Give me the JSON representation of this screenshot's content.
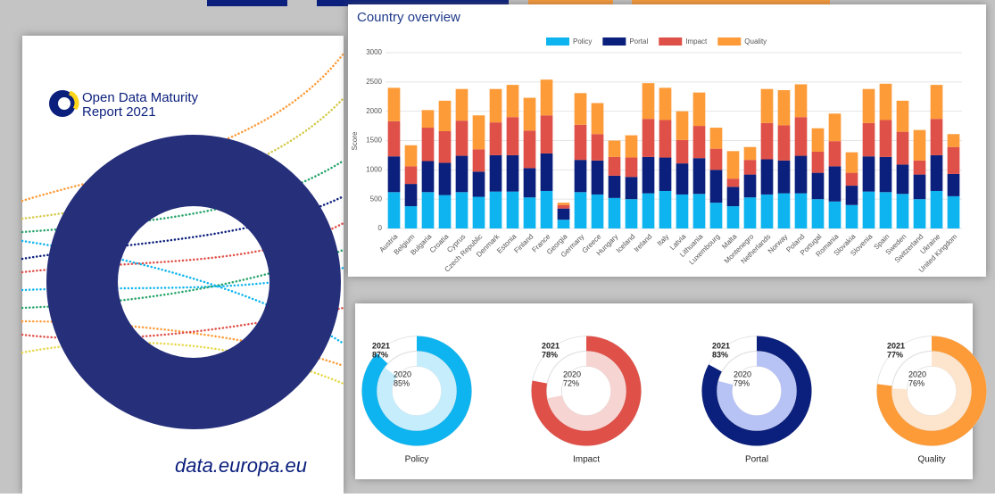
{
  "cover": {
    "logo_text": [
      "Open Data Maturity",
      "Report 2021"
    ],
    "footer": "data.europa.eu"
  },
  "chart_data": [
    {
      "type": "stacked-bar",
      "title": "Country overview",
      "y_label": "Score",
      "legend": "top",
      "grid": true,
      "ylim": [
        0,
        3000
      ],
      "yticks": [
        0,
        500,
        1000,
        1500,
        2000,
        2500,
        3000
      ],
      "categories": [
        "Austria",
        "Belgium",
        "Bulgaria",
        "Croatia",
        "Cyprus",
        "Czech Republic",
        "Denmark",
        "Estonia",
        "Finland",
        "France",
        "Georgia",
        "Germany",
        "Greece",
        "Hungary",
        "Iceland",
        "Ireland",
        "Italy",
        "Latvia",
        "Lithuania",
        "Luxembourg",
        "Malta",
        "Montenegro",
        "Netherlands",
        "Norway",
        "Poland",
        "Portugal",
        "Romania",
        "Slovakia",
        "Slovenia",
        "Spain",
        "Sweden",
        "Switzerland",
        "Ukraine",
        "United Kingdom"
      ],
      "series": [
        {
          "name": "Policy",
          "color": "#0eb4ef",
          "values": [
            620,
            380,
            620,
            570,
            620,
            540,
            630,
            630,
            530,
            640,
            150,
            620,
            580,
            520,
            500,
            600,
            640,
            580,
            590,
            440,
            380,
            530,
            580,
            600,
            600,
            500,
            460,
            400,
            630,
            620,
            590,
            500,
            640,
            550
          ]
        },
        {
          "name": "Portal",
          "color": "#0b1f7c",
          "values": [
            610,
            380,
            530,
            550,
            620,
            430,
            620,
            620,
            500,
            640,
            190,
            550,
            580,
            380,
            380,
            620,
            570,
            530,
            610,
            560,
            330,
            390,
            600,
            560,
            640,
            450,
            600,
            330,
            600,
            600,
            500,
            420,
            610,
            380
          ]
        },
        {
          "name": "Impact",
          "color": "#df5048",
          "values": [
            600,
            300,
            570,
            540,
            600,
            380,
            560,
            650,
            640,
            650,
            60,
            600,
            450,
            320,
            330,
            650,
            640,
            400,
            550,
            360,
            140,
            250,
            620,
            600,
            660,
            360,
            430,
            220,
            570,
            630,
            560,
            240,
            620,
            460
          ]
        },
        {
          "name": "Quality",
          "color": "#fc9b38",
          "values": [
            570,
            360,
            300,
            520,
            540,
            580,
            570,
            550,
            560,
            610,
            40,
            540,
            530,
            280,
            380,
            610,
            550,
            490,
            570,
            360,
            470,
            220,
            580,
            600,
            560,
            400,
            470,
            350,
            580,
            620,
            530,
            520,
            580,
            220
          ]
        }
      ]
    },
    {
      "type": "donut",
      "title": "Policy",
      "series": [
        {
          "name": "2021",
          "color": "#0eb4ef",
          "values": [
            87
          ],
          "value_labels": [
            "87%"
          ]
        },
        {
          "name": "2020",
          "color": "#c6edfc",
          "values": [
            85
          ],
          "value_labels": [
            "85%"
          ]
        }
      ]
    },
    {
      "type": "donut",
      "title": "Impact",
      "series": [
        {
          "name": "2021",
          "color": "#df5048",
          "values": [
            78
          ],
          "value_labels": [
            "78%"
          ]
        },
        {
          "name": "2020",
          "color": "#f6d4d2",
          "values": [
            72
          ],
          "value_labels": [
            "72%"
          ]
        }
      ]
    },
    {
      "type": "donut",
      "title": "Portal",
      "series": [
        {
          "name": "2021",
          "color": "#0b1f7c",
          "values": [
            83
          ],
          "value_labels": [
            "83%"
          ]
        },
        {
          "name": "2020",
          "color": "#b7c2f5",
          "values": [
            79
          ],
          "value_labels": [
            "79%"
          ]
        }
      ]
    },
    {
      "type": "donut",
      "title": "Quality",
      "series": [
        {
          "name": "2021",
          "color": "#fc9b38",
          "values": [
            77
          ],
          "value_labels": [
            "77%"
          ]
        },
        {
          "name": "2020",
          "color": "#fde4cc",
          "values": [
            76
          ],
          "value_labels": [
            "76%"
          ]
        }
      ]
    }
  ]
}
